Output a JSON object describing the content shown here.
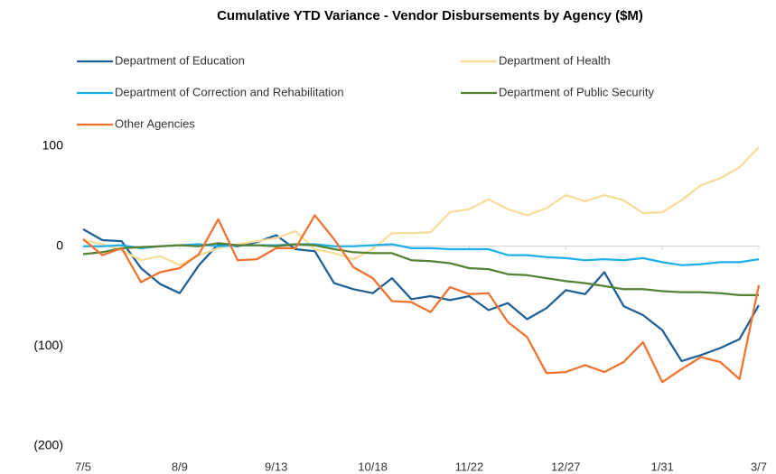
{
  "chart_data": {
    "type": "line",
    "title": "Cumulative YTD Variance - Vendor Disbursements by Agency ($M)",
    "categories": [
      "7/5",
      null,
      null,
      null,
      null,
      "8/9",
      null,
      null,
      null,
      null,
      "9/13",
      null,
      null,
      null,
      null,
      "10/18",
      null,
      null,
      null,
      null,
      "11/22",
      null,
      null,
      null,
      null,
      "12/27",
      null,
      null,
      null,
      null,
      "1/31",
      null,
      null,
      null,
      null,
      "3/7"
    ],
    "series": [
      {
        "name": "Department of Education",
        "color": "#1f5f96",
        "values": [
          17,
          6,
          5,
          -22,
          -38,
          -47,
          -19,
          2,
          0,
          4,
          11,
          -3,
          -5,
          -37,
          -43,
          -47,
          -32,
          -53,
          -50,
          -54,
          -50,
          -64,
          -57,
          -73,
          -62,
          -44,
          -48,
          -26,
          -60,
          -69,
          -84,
          -115,
          -109,
          -102,
          -93,
          -59
        ]
      },
      {
        "name": "Department of Health",
        "color": "#f8dc9a",
        "values": [
          6,
          2,
          -4,
          -14,
          -10,
          -19,
          -9,
          -2,
          2,
          5,
          8,
          15,
          -3,
          -7,
          -13,
          -3,
          13,
          13,
          14,
          34,
          37,
          47,
          37,
          31,
          38,
          51,
          45,
          51,
          46,
          33,
          34,
          46,
          61,
          68,
          79,
          99
        ]
      },
      {
        "name": "Department of Correction and Rehabilitation",
        "color": "#1fb0ea",
        "values": [
          0,
          0,
          1,
          -2,
          0,
          1,
          2,
          0,
          1,
          1,
          1,
          2,
          2,
          0,
          0,
          1,
          2,
          -2,
          -2,
          -3,
          -3,
          -3,
          -9,
          -9,
          -11,
          -12,
          -14,
          -13,
          -14,
          -12,
          -16,
          -19,
          -18,
          -16,
          -16,
          -13
        ]
      },
      {
        "name": "Department of Public Security",
        "color": "#548235",
        "values": [
          -8,
          -6,
          -2,
          -1,
          0,
          1,
          0,
          3,
          1,
          1,
          0,
          2,
          1,
          -3,
          -6,
          -7,
          -7,
          -14,
          -15,
          -17,
          -22,
          -23,
          -28,
          -29,
          -32,
          -35,
          -37,
          -40,
          -43,
          -43,
          -45,
          -46,
          -46,
          -47,
          -49,
          -49
        ]
      },
      {
        "name": "Other Agencies",
        "color": "#ee7330",
        "values": [
          7,
          -9,
          -2,
          -36,
          -26,
          -22,
          -8,
          27,
          -14,
          -13,
          -2,
          -2,
          31,
          7,
          -21,
          -32,
          -55,
          -56,
          -66,
          -41,
          -48,
          -47,
          -76,
          -91,
          -127,
          -126,
          -119,
          -126,
          -116,
          -96,
          -136,
          -123,
          -111,
          -116,
          -133,
          -39
        ]
      }
    ],
    "ylim": [
      -200,
      100
    ],
    "yticks": [
      {
        "value": -200,
        "label": "(200)"
      },
      {
        "value": -100,
        "label": "(100)"
      },
      0,
      100
    ],
    "legend": "top"
  }
}
